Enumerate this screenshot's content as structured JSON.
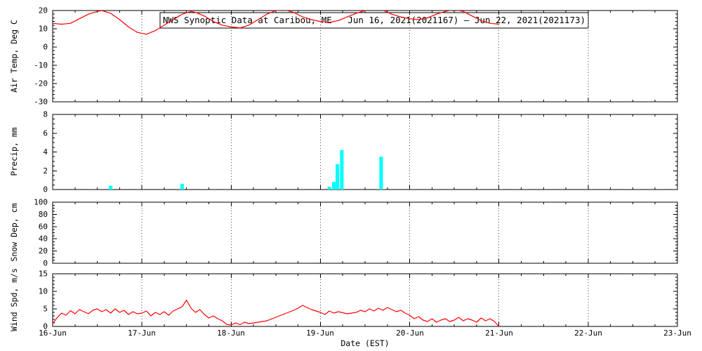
{
  "title": "NWS Synoptic Data at Caribou, ME   Jun 16, 2021(2021167) – Jun 22, 2021(2021173)",
  "xlabel": "Date (EST)",
  "x_tick_labels": [
    "16-Jun",
    "17-Jun",
    "18-Jun",
    "19-Jun",
    "20-Jun",
    "21-Jun",
    "22-Jun",
    "23-Jun"
  ],
  "x_range_days": [
    0,
    7
  ],
  "colors": {
    "background": "#ffffff",
    "axis": "#000000",
    "temperature_line": "#ff0000",
    "wind_line": "#ff0000",
    "precip_bar": "#00ffff"
  },
  "chart_data": [
    {
      "type": "line",
      "name": "air-temp",
      "ylabel": "Air Temp, Deg C",
      "ylim": [
        -30,
        20
      ],
      "yticks": [
        -30,
        -20,
        -10,
        0,
        10,
        20
      ],
      "ytick_minor_step": 2,
      "color": "#ff0000",
      "points": [
        [
          0,
          13
        ],
        [
          0.1,
          12.5
        ],
        [
          0.2,
          13
        ],
        [
          0.3,
          15.5
        ],
        [
          0.4,
          18
        ],
        [
          0.5,
          19.5
        ],
        [
          0.55,
          20
        ],
        [
          0.65,
          18.5
        ],
        [
          0.75,
          15
        ],
        [
          0.85,
          11
        ],
        [
          0.95,
          8
        ],
        [
          1.05,
          7
        ],
        [
          1.15,
          9
        ],
        [
          1.25,
          12
        ],
        [
          1.35,
          15
        ],
        [
          1.45,
          18
        ],
        [
          1.55,
          19.5
        ],
        [
          1.6,
          19
        ],
        [
          1.7,
          17
        ],
        [
          1.8,
          14
        ],
        [
          1.9,
          12
        ],
        [
          2.0,
          11
        ],
        [
          2.1,
          10.5
        ],
        [
          2.2,
          12
        ],
        [
          2.3,
          15
        ],
        [
          2.4,
          18
        ],
        [
          2.5,
          20
        ],
        [
          2.6,
          20.3
        ],
        [
          2.7,
          19
        ],
        [
          2.8,
          16.5
        ],
        [
          2.9,
          15
        ],
        [
          3.0,
          14
        ],
        [
          3.1,
          13.5
        ],
        [
          3.2,
          14.5
        ],
        [
          3.3,
          16.5
        ],
        [
          3.4,
          18.5
        ],
        [
          3.5,
          20
        ],
        [
          3.6,
          20.8
        ],
        [
          3.7,
          20.2
        ],
        [
          3.8,
          18
        ],
        [
          3.9,
          16.5
        ],
        [
          4.0,
          15.5
        ],
        [
          4.1,
          15
        ],
        [
          4.2,
          16
        ],
        [
          4.3,
          18
        ],
        [
          4.4,
          19.5
        ],
        [
          4.5,
          20.5
        ],
        [
          4.6,
          19.5
        ],
        [
          4.7,
          17
        ],
        [
          4.8,
          14.5
        ],
        [
          4.9,
          13
        ],
        [
          5.0,
          12.5
        ]
      ]
    },
    {
      "type": "bar",
      "name": "precip",
      "ylabel": "Precip, mm",
      "ylim": [
        0,
        8
      ],
      "yticks": [
        0,
        2,
        4,
        6,
        8
      ],
      "ytick_minor_step": 0.5,
      "color": "#00ffff",
      "bars": [
        [
          0.65,
          0.4
        ],
        [
          1.45,
          0.6
        ],
        [
          3.1,
          0.3
        ],
        [
          3.15,
          0.8
        ],
        [
          3.19,
          2.7
        ],
        [
          3.24,
          4.2
        ],
        [
          3.68,
          3.5
        ]
      ]
    },
    {
      "type": "line",
      "name": "snow-depth",
      "ylabel": "Snow Dep, cm",
      "ylim": [
        0,
        100
      ],
      "yticks": [
        0,
        20,
        40,
        60,
        80,
        100
      ],
      "ytick_minor_step": 5,
      "color": "#ff0000",
      "points": []
    },
    {
      "type": "line",
      "name": "wind-speed",
      "ylabel": "Wind Spd, m/s",
      "ylim": [
        0,
        15
      ],
      "yticks": [
        0,
        5,
        10,
        15
      ],
      "ytick_minor_step": 1,
      "color": "#ff0000",
      "points": [
        [
          0,
          0.8
        ],
        [
          0.05,
          2.5
        ],
        [
          0.1,
          3.8
        ],
        [
          0.15,
          3.2
        ],
        [
          0.2,
          4.5
        ],
        [
          0.25,
          3.6
        ],
        [
          0.3,
          4.8
        ],
        [
          0.35,
          4.2
        ],
        [
          0.4,
          3.6
        ],
        [
          0.45,
          4.6
        ],
        [
          0.5,
          5.0
        ],
        [
          0.55,
          4.2
        ],
        [
          0.6,
          4.8
        ],
        [
          0.65,
          3.8
        ],
        [
          0.7,
          5.0
        ],
        [
          0.75,
          4.0
        ],
        [
          0.8,
          4.6
        ],
        [
          0.85,
          3.4
        ],
        [
          0.9,
          4.2
        ],
        [
          0.95,
          3.6
        ],
        [
          1.0,
          3.8
        ],
        [
          1.05,
          4.4
        ],
        [
          1.1,
          3.0
        ],
        [
          1.15,
          4.0
        ],
        [
          1.2,
          3.4
        ],
        [
          1.25,
          4.2
        ],
        [
          1.3,
          3.2
        ],
        [
          1.35,
          4.4
        ],
        [
          1.4,
          5.0
        ],
        [
          1.45,
          5.6
        ],
        [
          1.5,
          7.5
        ],
        [
          1.55,
          5.2
        ],
        [
          1.6,
          4.0
        ],
        [
          1.65,
          4.8
        ],
        [
          1.7,
          3.4
        ],
        [
          1.75,
          2.4
        ],
        [
          1.8,
          3.0
        ],
        [
          1.85,
          2.2
        ],
        [
          1.9,
          1.6
        ],
        [
          1.95,
          0.6
        ],
        [
          2.0,
          0.4
        ],
        [
          2.05,
          1.0
        ],
        [
          2.1,
          0.5
        ],
        [
          2.15,
          1.2
        ],
        [
          2.2,
          0.8
        ],
        [
          2.3,
          1.2
        ],
        [
          2.4,
          1.6
        ],
        [
          2.5,
          2.6
        ],
        [
          2.6,
          3.6
        ],
        [
          2.7,
          4.6
        ],
        [
          2.75,
          5.2
        ],
        [
          2.8,
          6.0
        ],
        [
          2.85,
          5.4
        ],
        [
          2.9,
          4.8
        ],
        [
          2.95,
          4.4
        ],
        [
          3.0,
          4.0
        ],
        [
          3.05,
          3.4
        ],
        [
          3.1,
          4.4
        ],
        [
          3.15,
          3.8
        ],
        [
          3.2,
          4.2
        ],
        [
          3.3,
          3.6
        ],
        [
          3.4,
          4.0
        ],
        [
          3.45,
          4.6
        ],
        [
          3.5,
          4.2
        ],
        [
          3.55,
          5.0
        ],
        [
          3.6,
          4.4
        ],
        [
          3.65,
          5.2
        ],
        [
          3.7,
          4.6
        ],
        [
          3.75,
          5.4
        ],
        [
          3.8,
          4.8
        ],
        [
          3.85,
          4.2
        ],
        [
          3.9,
          4.6
        ],
        [
          3.95,
          3.8
        ],
        [
          4.0,
          3.2
        ],
        [
          4.05,
          2.2
        ],
        [
          4.1,
          2.8
        ],
        [
          4.15,
          1.8
        ],
        [
          4.2,
          1.4
        ],
        [
          4.25,
          2.2
        ],
        [
          4.3,
          1.2
        ],
        [
          4.35,
          1.8
        ],
        [
          4.4,
          2.2
        ],
        [
          4.45,
          1.4
        ],
        [
          4.5,
          1.8
        ],
        [
          4.55,
          2.6
        ],
        [
          4.6,
          1.6
        ],
        [
          4.65,
          2.2
        ],
        [
          4.7,
          1.8
        ],
        [
          4.75,
          1.2
        ],
        [
          4.8,
          2.4
        ],
        [
          4.85,
          1.6
        ],
        [
          4.9,
          2.2
        ],
        [
          4.95,
          1.4
        ],
        [
          5.0,
          0
        ]
      ]
    }
  ]
}
